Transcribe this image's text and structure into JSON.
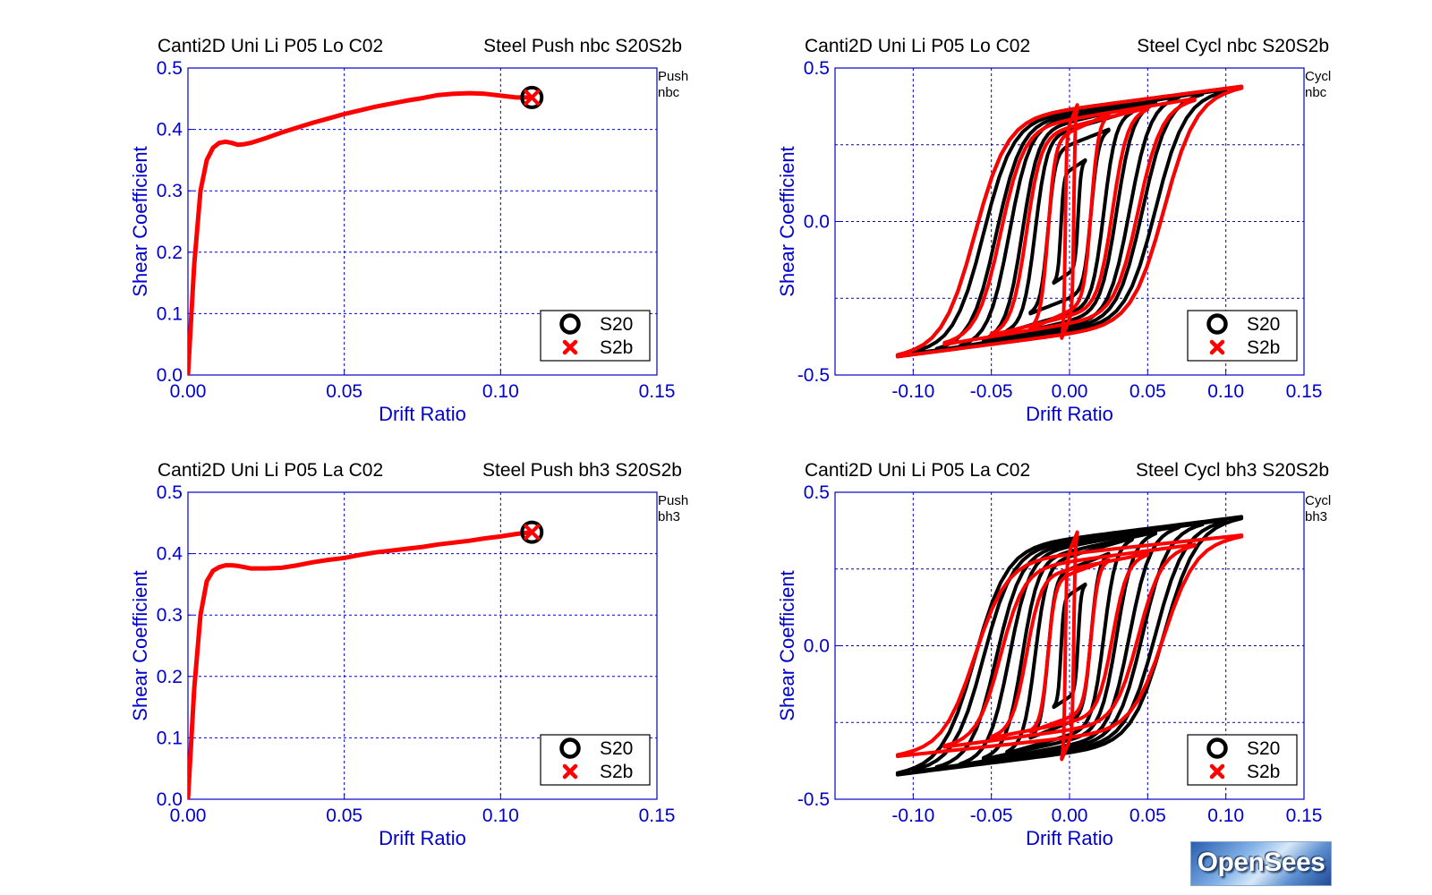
{
  "logo_text": "OpenSees",
  "colors": {
    "axis": "#0000cc",
    "grid": "#0000cc",
    "s20": "#000000",
    "s2b": "#ff0000"
  },
  "chart_data": [
    {
      "type": "line",
      "title_left": "Canti2D Uni Li P05 Lo C02",
      "title_right": "Steel Push nbc S20S2b",
      "side_note": [
        "Push",
        "nbc"
      ],
      "xlabel": "Drift Ratio",
      "ylabel": "Shear Coefficient",
      "xlim": [
        0,
        0.15
      ],
      "ylim": [
        0,
        0.5
      ],
      "xticks": [
        0,
        0.05,
        0.1,
        0.15
      ],
      "xtick_labels": [
        "0.00",
        "0.05",
        "0.10",
        "0.15"
      ],
      "yticks": [
        0,
        0.1,
        0.2,
        0.3,
        0.4,
        0.5
      ],
      "ytick_labels": [
        "0.0",
        "0.1",
        "0.2",
        "0.3",
        "0.4",
        "0.5"
      ],
      "grid": true,
      "legend_position": "bottom-right",
      "series": [
        {
          "name": "S20",
          "marker": "circle",
          "end_marker_only": true,
          "x": [
            0.11
          ],
          "y": [
            0.452
          ]
        },
        {
          "name": "S2b",
          "marker": "x",
          "x": [
            0,
            0.002,
            0.004,
            0.006,
            0.008,
            0.01,
            0.012,
            0.014,
            0.016,
            0.018,
            0.02,
            0.025,
            0.03,
            0.035,
            0.04,
            0.045,
            0.05,
            0.055,
            0.06,
            0.065,
            0.07,
            0.075,
            0.08,
            0.085,
            0.09,
            0.095,
            0.1,
            0.105,
            0.11
          ],
          "y": [
            0,
            0.18,
            0.3,
            0.35,
            0.37,
            0.378,
            0.38,
            0.378,
            0.375,
            0.376,
            0.378,
            0.386,
            0.395,
            0.403,
            0.411,
            0.418,
            0.425,
            0.431,
            0.437,
            0.442,
            0.447,
            0.451,
            0.456,
            0.458,
            0.459,
            0.458,
            0.455,
            0.452,
            0.452
          ]
        }
      ]
    },
    {
      "type": "line",
      "title_left": "Canti2D Uni Li P05 Lo C02",
      "title_right": "Steel Cycl nbc S20S2b",
      "side_note": [
        "Cycl",
        "nbc"
      ],
      "xlabel": "Drift Ratio",
      "ylabel": "Shear Coefficient",
      "xlim": [
        -0.15,
        0.15
      ],
      "ylim": [
        -0.5,
        0.5
      ],
      "xticks": [
        -0.1,
        -0.05,
        0,
        0.05,
        0.1,
        0.15
      ],
      "xtick_labels": [
        "-0.10",
        "-0.05",
        "0.00",
        "0.05",
        "0.10",
        "0.15"
      ],
      "yticks": [
        -0.5,
        0,
        0.5
      ],
      "ytick_labels": [
        "-0.5",
        "0.0",
        "0.5"
      ],
      "grid": true,
      "legend_position": "bottom-right",
      "series": [
        {
          "name": "S20",
          "kind": "hysteresis",
          "amplitudes": [
            0.01,
            0.025,
            0.04,
            0.055,
            0.07,
            0.085,
            0.1,
            0.11
          ],
          "peak_shear": [
            0.2,
            0.3,
            0.36,
            0.39,
            0.41,
            0.42,
            0.43,
            0.44
          ],
          "hook": true
        },
        {
          "name": "S2b",
          "kind": "hysteresis",
          "amplitudes": [
            0.005,
            0.025,
            0.05,
            0.08,
            0.11
          ],
          "peak_shear": [
            0.38,
            0.35,
            0.37,
            0.4,
            0.44
          ],
          "hook": false
        }
      ]
    },
    {
      "type": "line",
      "title_left": "Canti2D Uni Li P05 La C02",
      "title_right": "Steel Push bh3 S20S2b",
      "side_note": [
        "Push",
        "bh3"
      ],
      "xlabel": "Drift Ratio",
      "ylabel": "Shear Coefficient",
      "xlim": [
        0,
        0.15
      ],
      "ylim": [
        0,
        0.5
      ],
      "xticks": [
        0,
        0.05,
        0.1,
        0.15
      ],
      "xtick_labels": [
        "0.00",
        "0.05",
        "0.10",
        "0.15"
      ],
      "yticks": [
        0,
        0.1,
        0.2,
        0.3,
        0.4,
        0.5
      ],
      "ytick_labels": [
        "0.0",
        "0.1",
        "0.2",
        "0.3",
        "0.4",
        "0.5"
      ],
      "grid": true,
      "legend_position": "bottom-right",
      "series": [
        {
          "name": "S20",
          "marker": "circle",
          "end_marker_only": true,
          "x": [
            0.11
          ],
          "y": [
            0.435
          ]
        },
        {
          "name": "S2b",
          "marker": "x",
          "x": [
            0,
            0.002,
            0.004,
            0.006,
            0.008,
            0.01,
            0.012,
            0.014,
            0.016,
            0.018,
            0.02,
            0.025,
            0.03,
            0.035,
            0.04,
            0.045,
            0.05,
            0.055,
            0.06,
            0.065,
            0.07,
            0.075,
            0.08,
            0.085,
            0.09,
            0.095,
            0.1,
            0.105,
            0.11
          ],
          "y": [
            0,
            0.18,
            0.3,
            0.355,
            0.372,
            0.378,
            0.381,
            0.381,
            0.38,
            0.378,
            0.376,
            0.376,
            0.377,
            0.381,
            0.386,
            0.39,
            0.393,
            0.398,
            0.402,
            0.405,
            0.408,
            0.411,
            0.415,
            0.418,
            0.421,
            0.425,
            0.428,
            0.432,
            0.435
          ]
        }
      ]
    },
    {
      "type": "line",
      "title_left": "Canti2D Uni Li P05 La C02",
      "title_right": "Steel Cycl bh3 S20S2b",
      "side_note": [
        "Cycl",
        "bh3"
      ],
      "xlabel": "Drift Ratio",
      "ylabel": "Shear Coefficient",
      "xlim": [
        -0.15,
        0.15
      ],
      "ylim": [
        -0.5,
        0.5
      ],
      "xticks": [
        -0.1,
        -0.05,
        0,
        0.05,
        0.1,
        0.15
      ],
      "xtick_labels": [
        "-0.10",
        "-0.05",
        "0.00",
        "0.05",
        "0.10",
        "0.15"
      ],
      "yticks": [
        -0.5,
        0,
        0.5
      ],
      "ytick_labels": [
        "-0.5",
        "0.0",
        "0.5"
      ],
      "grid": true,
      "legend_position": "bottom-right",
      "series": [
        {
          "name": "S20",
          "kind": "hysteresis",
          "amplitudes": [
            0.01,
            0.025,
            0.04,
            0.055,
            0.07,
            0.085,
            0.1,
            0.11
          ],
          "peak_shear": [
            0.2,
            0.3,
            0.35,
            0.37,
            0.39,
            0.4,
            0.41,
            0.42
          ],
          "hook": true
        },
        {
          "name": "S2b",
          "kind": "hysteresis",
          "amplitudes": [
            0.005,
            0.025,
            0.05,
            0.08,
            0.11
          ],
          "peak_shear": [
            0.37,
            0.28,
            0.3,
            0.33,
            0.36
          ],
          "hook": false
        }
      ]
    }
  ]
}
